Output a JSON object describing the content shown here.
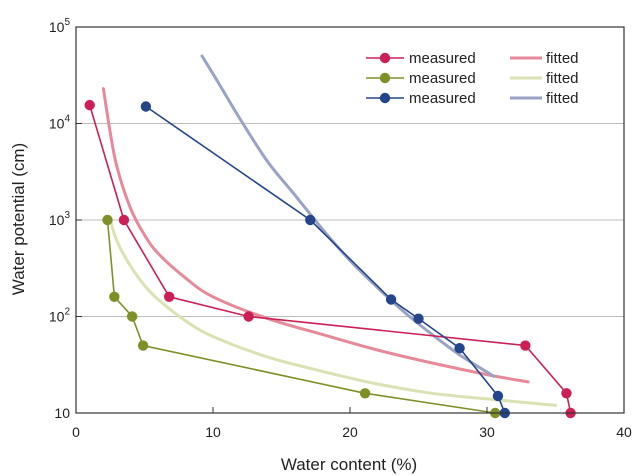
{
  "chart_data": {
    "type": "line",
    "xlabel": "Water content (%)",
    "ylabel": "Water potential (cm)",
    "xlim": [
      0,
      40
    ],
    "ylim": [
      10,
      100000
    ],
    "yscale": "log",
    "grid": "horizontal",
    "legend_placement": "top-right",
    "x_ticks": [
      "0",
      "10",
      "20",
      "30",
      "40"
    ],
    "y_ticks": [
      {
        "base": "10",
        "exp": ""
      },
      {
        "base": "10",
        "exp": "2"
      },
      {
        "base": "10",
        "exp": "3"
      },
      {
        "base": "10",
        "exp": "4"
      },
      {
        "base": "10",
        "exp": "5"
      }
    ],
    "y_tick_values": [
      10,
      100,
      1000,
      10000,
      100000
    ],
    "measured": [
      {
        "name": "measured",
        "color": "#cc1f55",
        "points": [
          [
            1.0,
            15500
          ],
          [
            3.5,
            1000
          ],
          [
            6.8,
            160
          ],
          [
            12.6,
            100
          ],
          [
            32.8,
            50
          ],
          [
            35.8,
            16
          ],
          [
            36.1,
            10
          ]
        ]
      },
      {
        "name": "measured",
        "color": "#7d9128",
        "points": [
          [
            2.3,
            1000
          ],
          [
            2.8,
            160
          ],
          [
            4.1,
            100
          ],
          [
            4.9,
            50
          ],
          [
            21.1,
            16
          ],
          [
            30.6,
            10
          ]
        ]
      },
      {
        "name": "measured",
        "color": "#24458c",
        "points": [
          [
            5.1,
            15000
          ],
          [
            17.1,
            1000
          ],
          [
            23.0,
            150
          ],
          [
            25.0,
            95
          ],
          [
            28.0,
            47
          ],
          [
            30.8,
            15
          ],
          [
            31.3,
            10
          ]
        ]
      }
    ],
    "fitted": [
      {
        "name": "fitted",
        "color": "#e8899a",
        "points": [
          [
            2.0,
            23000
          ],
          [
            2.5,
            8000
          ],
          [
            3.0,
            3500
          ],
          [
            4.0,
            1300
          ],
          [
            5.0,
            700
          ],
          [
            6.0,
            450
          ],
          [
            8.0,
            250
          ],
          [
            10.0,
            160
          ],
          [
            14.0,
            95
          ],
          [
            18.0,
            65
          ],
          [
            22.0,
            45
          ],
          [
            26.0,
            33
          ],
          [
            30.0,
            25
          ],
          [
            33.0,
            21
          ]
        ]
      },
      {
        "name": "fitted",
        "color": "#d9e2b2",
        "points": [
          [
            2.5,
            1000
          ],
          [
            3.0,
            600
          ],
          [
            4.0,
            330
          ],
          [
            5.0,
            210
          ],
          [
            6.0,
            150
          ],
          [
            8.0,
            90
          ],
          [
            10.0,
            62
          ],
          [
            14.0,
            38
          ],
          [
            18.0,
            27
          ],
          [
            22.0,
            20
          ],
          [
            26.0,
            16
          ],
          [
            30.0,
            14
          ],
          [
            35.0,
            12
          ]
        ]
      },
      {
        "name": "fitted",
        "color": "#99a3c4",
        "points": [
          [
            9.2,
            50000
          ],
          [
            10.5,
            25000
          ],
          [
            12.0,
            11000
          ],
          [
            14.0,
            4000
          ],
          [
            16.0,
            1800
          ],
          [
            18.0,
            800
          ],
          [
            20.0,
            380
          ],
          [
            22.0,
            200
          ],
          [
            24.0,
            110
          ],
          [
            26.0,
            65
          ],
          [
            28.0,
            40
          ],
          [
            30.5,
            24
          ]
        ]
      }
    ],
    "legend": {
      "measured_label": "measured",
      "fitted_label": "fitted"
    }
  }
}
